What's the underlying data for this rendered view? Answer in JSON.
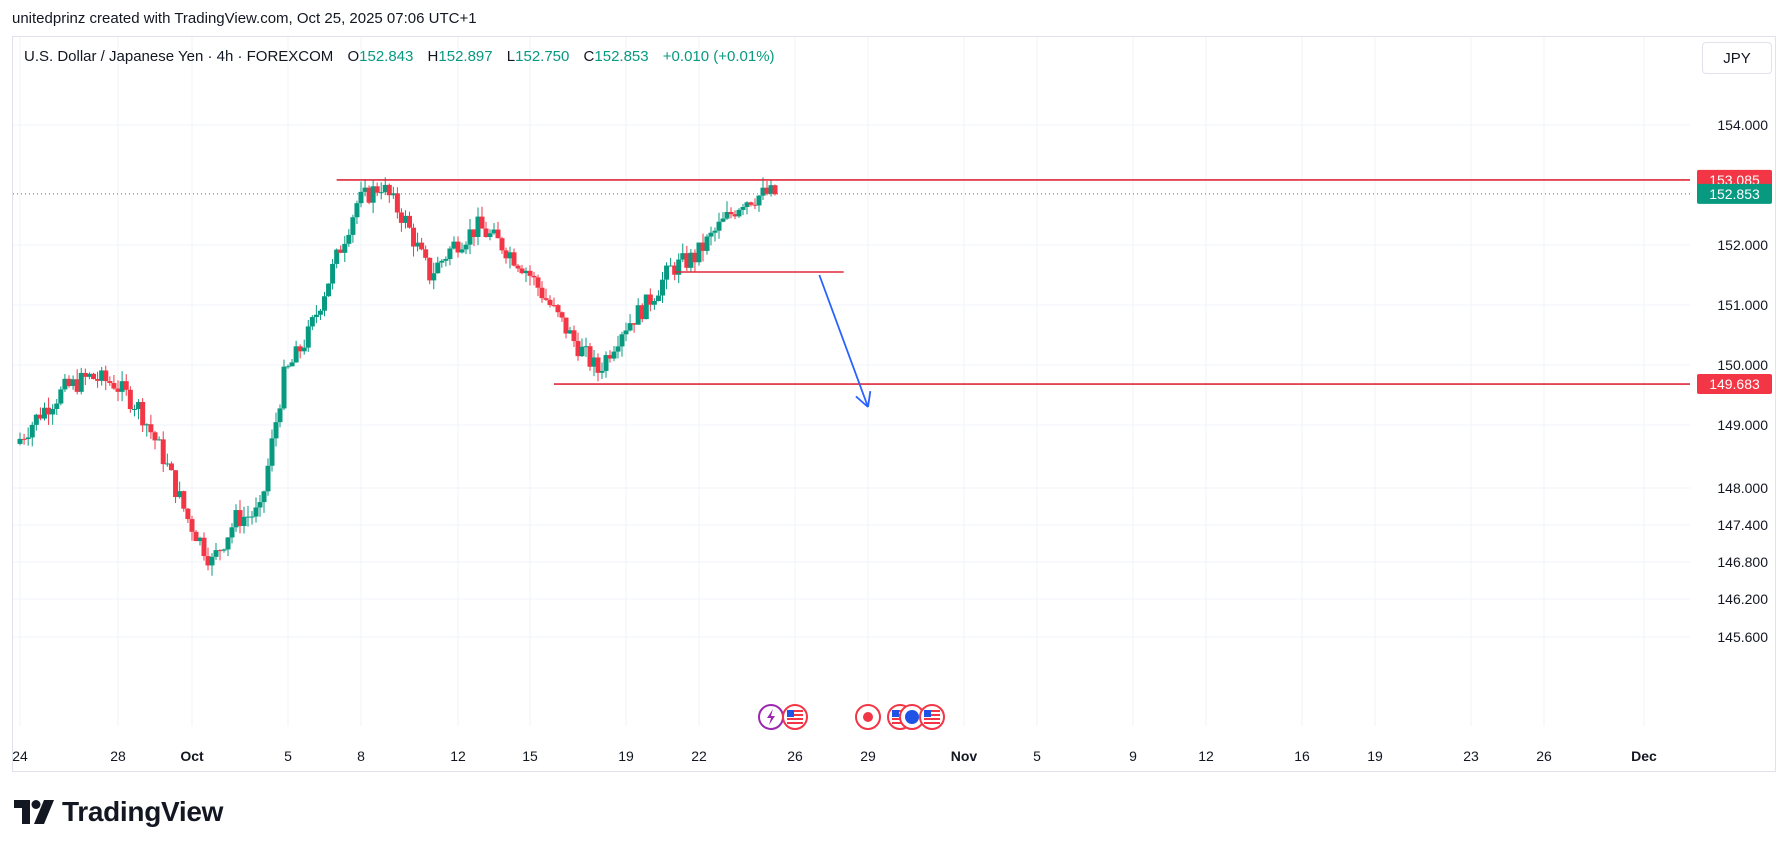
{
  "header": {
    "attribution": "unitedprinz created with TradingView.com, Oct 25, 2025 07:06 UTC+1"
  },
  "legend": {
    "symbol": "U.S. Dollar / Japanese Yen · 4h · FOREXCOM",
    "o_label": "O",
    "o_value": "152.843",
    "h_label": "H",
    "h_value": "152.897",
    "l_label": "L",
    "l_value": "152.750",
    "c_label": "C",
    "c_value": "152.853",
    "change": "+0.010 (+0.01%)"
  },
  "currency_button": "JPY",
  "footer": {
    "brand": "TradingView"
  },
  "colors": {
    "up": "#089981",
    "down": "#f23645",
    "level": "#e0283a",
    "arrow": "#2962ff",
    "grid": "#f0f3fa"
  },
  "chart_data": {
    "type": "candlestick",
    "price_scale": {
      "ticks": [
        154.0,
        152.0,
        151.0,
        150.0,
        149.0,
        148.0,
        147.4,
        146.8,
        146.2,
        145.6
      ],
      "tick_labels": [
        "154.000",
        "152.000",
        "151.000",
        "150.000",
        "149.000",
        "148.000",
        "147.400",
        "146.800",
        "146.200",
        "145.600"
      ]
    },
    "time_scale": {
      "labels": [
        "24",
        "28",
        "Oct",
        "5",
        "8",
        "12",
        "15",
        "19",
        "22",
        "26",
        "29",
        "Nov",
        "5",
        "9",
        "12",
        "16",
        "19",
        "23",
        "26",
        "Dec"
      ]
    },
    "anchors": [
      {
        "price": 154.0,
        "y": 125
      },
      {
        "price": 153.0,
        "y": 185
      },
      {
        "price": 152.0,
        "y": 245
      },
      {
        "price": 151.0,
        "y": 305
      },
      {
        "price": 150.0,
        "y": 365
      },
      {
        "price": 149.0,
        "y": 425
      },
      {
        "price": 148.0,
        "y": 488
      },
      {
        "price": 147.4,
        "y": 525
      },
      {
        "price": 146.8,
        "y": 562
      },
      {
        "price": 146.2,
        "y": 599
      },
      {
        "price": 145.6,
        "y": 637
      }
    ],
    "date_anchors": [
      {
        "date": "2025-09-24",
        "x": 20
      },
      {
        "date": "2025-09-28",
        "x": 118
      },
      {
        "date": "2025-10-01",
        "x": 192
      },
      {
        "date": "2025-10-05",
        "x": 288
      },
      {
        "date": "2025-10-08",
        "x": 361
      },
      {
        "date": "2025-10-12",
        "x": 458
      },
      {
        "date": "2025-10-15",
        "x": 530
      },
      {
        "date": "2025-10-19",
        "x": 626
      },
      {
        "date": "2025-10-22",
        "x": 699
      },
      {
        "date": "2025-10-26",
        "x": 795
      },
      {
        "date": "2025-10-29",
        "x": 868
      },
      {
        "date": "2025-11-01",
        "x": 964
      },
      {
        "date": "2025-11-05",
        "x": 1037
      },
      {
        "date": "2025-11-09",
        "x": 1133
      },
      {
        "date": "2025-11-12",
        "x": 1206
      },
      {
        "date": "2025-11-16",
        "x": 1302
      },
      {
        "date": "2025-11-19",
        "x": 1375
      },
      {
        "date": "2025-11-23",
        "x": 1471
      },
      {
        "date": "2025-11-26",
        "x": 1544
      },
      {
        "date": "2025-12-01",
        "x": 1644
      }
    ],
    "price_path": [
      {
        "date": "2025-09-24",
        "price": 148.7
      },
      {
        "date": "2025-09-25",
        "price": 149.2
      },
      {
        "date": "2025-09-26",
        "price": 149.6
      },
      {
        "date": "2025-09-27",
        "price": 149.8
      },
      {
        "date": "2025-09-28",
        "price": 149.7
      },
      {
        "date": "2025-09-29",
        "price": 149.3
      },
      {
        "date": "2025-09-30",
        "price": 148.5
      },
      {
        "date": "2025-10-01",
        "price": 147.5
      },
      {
        "date": "2025-10-02",
        "price": 146.8
      },
      {
        "date": "2025-10-03",
        "price": 147.5
      },
      {
        "date": "2025-10-04",
        "price": 147.6
      },
      {
        "date": "2025-10-05",
        "price": 149.8
      },
      {
        "date": "2025-10-06",
        "price": 150.5
      },
      {
        "date": "2025-10-07",
        "price": 151.6
      },
      {
        "date": "2025-10-08",
        "price": 152.7
      },
      {
        "date": "2025-10-09",
        "price": 153.0
      },
      {
        "date": "2025-10-10",
        "price": 152.4
      },
      {
        "date": "2025-10-11",
        "price": 151.5
      },
      {
        "date": "2025-10-12",
        "price": 152.0
      },
      {
        "date": "2025-10-13",
        "price": 152.3
      },
      {
        "date": "2025-10-14",
        "price": 152.0
      },
      {
        "date": "2025-10-15",
        "price": 151.6
      },
      {
        "date": "2025-10-16",
        "price": 151.0
      },
      {
        "date": "2025-10-17",
        "price": 150.4
      },
      {
        "date": "2025-10-18",
        "price": 149.9
      },
      {
        "date": "2025-10-19",
        "price": 150.6
      },
      {
        "date": "2025-10-20",
        "price": 151.0
      },
      {
        "date": "2025-10-21",
        "price": 151.6
      },
      {
        "date": "2025-10-22",
        "price": 151.8
      },
      {
        "date": "2025-10-23",
        "price": 152.3
      },
      {
        "date": "2025-10-24",
        "price": 152.75
      },
      {
        "date": "2025-10-25",
        "price": 152.853
      }
    ],
    "levels": [
      {
        "price": 153.085,
        "label": "153.085",
        "from_date": "2025-10-07"
      },
      {
        "price": 149.683,
        "label": "149.683",
        "from_date": "2025-10-16"
      },
      {
        "price": 151.55,
        "from_date": "2025-10-21",
        "to_date": "2025-10-28"
      }
    ],
    "current_price": {
      "price": 152.853,
      "label": "152.853"
    },
    "projection": {
      "from": {
        "date": "2025-10-27",
        "price": 151.5
      },
      "to": {
        "date": "2025-10-29",
        "price": 149.3
      }
    },
    "events": [
      {
        "date": "2025-10-25",
        "kind": "lightning-icon"
      },
      {
        "date": "2025-10-26",
        "kind": "us-flag-icon"
      },
      {
        "date": "2025-10-29",
        "kind": "jp-flag-icon"
      },
      {
        "date": "2025-10-30",
        "kind": "us-flag-icon"
      },
      {
        "date": "2025-10-30",
        "kind": "eu-flag-icon"
      },
      {
        "date": "2025-10-31",
        "kind": "us-flag-icon"
      }
    ]
  }
}
